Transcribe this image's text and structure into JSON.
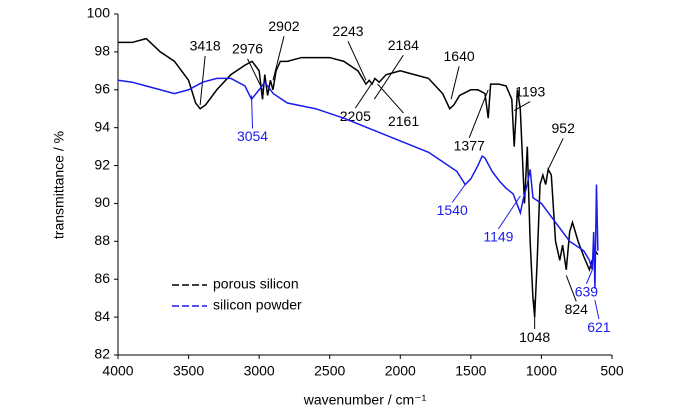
{
  "chart_data": {
    "type": "line",
    "x_label": "wavenumber / cm⁻¹",
    "y_label": "transmittance / %",
    "xlim": [
      4000,
      500
    ],
    "ylim": [
      82,
      100
    ],
    "xticks": [
      4000,
      3500,
      3000,
      2500,
      2000,
      1500,
      1000,
      500
    ],
    "yticks": [
      82,
      84,
      86,
      88,
      90,
      92,
      94,
      96,
      98,
      100
    ],
    "legend": "lower-left",
    "series": [
      {
        "name": "porous silicon",
        "color": "#000000",
        "x": [
          4000,
          3900,
          3800,
          3700,
          3600,
          3500,
          3450,
          3418,
          3380,
          3300,
          3200,
          3100,
          3050,
          3000,
          2976,
          2960,
          2940,
          2920,
          2902,
          2880,
          2850,
          2800,
          2700,
          2600,
          2500,
          2400,
          2300,
          2243,
          2220,
          2200,
          2180,
          2150,
          2100,
          2000,
          1900,
          1800,
          1750,
          1700,
          1650,
          1620,
          1580,
          1500,
          1450,
          1400,
          1377,
          1360,
          1300,
          1250,
          1210,
          1193,
          1170,
          1150,
          1120,
          1100,
          1080,
          1060,
          1048,
          1030,
          1010,
          990,
          970,
          952,
          930,
          900,
          870,
          850,
          824,
          800,
          780,
          760,
          740,
          700,
          660,
          640,
          620,
          600
        ],
        "values": [
          98.5,
          98.5,
          98.7,
          98.0,
          97.5,
          96.5,
          95.3,
          95.0,
          95.2,
          96.0,
          96.8,
          97.3,
          97.5,
          97.0,
          95.5,
          96.8,
          95.7,
          96.5,
          96.0,
          97.0,
          97.5,
          97.5,
          97.7,
          97.7,
          97.7,
          97.5,
          97.0,
          96.3,
          96.5,
          96.3,
          96.6,
          96.4,
          96.8,
          97.0,
          96.8,
          96.6,
          96.2,
          95.8,
          95.0,
          95.2,
          95.7,
          96.0,
          96.0,
          95.8,
          94.5,
          96.3,
          96.3,
          96.2,
          95.5,
          93.0,
          96.0,
          95.0,
          90.0,
          93.0,
          88.0,
          85.0,
          84.0,
          87.0,
          91.0,
          91.5,
          91.0,
          91.8,
          91.5,
          88.0,
          87.0,
          87.8,
          86.5,
          88.5,
          89.0,
          88.5,
          88.0,
          87.2,
          86.5,
          87.0,
          87.5,
          87.3
        ],
        "peaks": [
          {
            "x": 3418,
            "y": 95.2
          },
          {
            "x": 2976,
            "y": 96.0
          },
          {
            "x": 2902,
            "y": 96.5
          },
          {
            "x": 2243,
            "y": 96.5
          },
          {
            "x": 2184,
            "y": 95.5
          },
          {
            "x": 2205,
            "y": 96.3
          },
          {
            "x": 2161,
            "y": 96.3
          },
          {
            "x": 1640,
            "y": 95.5
          },
          {
            "x": 1377,
            "y": 96.0
          },
          {
            "x": 1193,
            "y": 94.9
          },
          {
            "x": 952,
            "y": 91.8
          },
          {
            "x": 1048,
            "y": 84.9
          },
          {
            "x": 824,
            "y": 86.2
          }
        ]
      },
      {
        "name": "silicon powder",
        "color": "#1a1aee",
        "x": [
          4000,
          3900,
          3800,
          3700,
          3600,
          3500,
          3400,
          3300,
          3200,
          3100,
          3054,
          3000,
          2960,
          2900,
          2800,
          2600,
          2400,
          2200,
          2000,
          1800,
          1700,
          1600,
          1540,
          1500,
          1450,
          1420,
          1400,
          1350,
          1300,
          1250,
          1200,
          1149,
          1130,
          1100,
          1080,
          1060,
          1000,
          950,
          900,
          850,
          800,
          700,
          660,
          639,
          630,
          621,
          610,
          600
        ],
        "values": [
          96.5,
          96.4,
          96.2,
          96.0,
          95.8,
          96.0,
          96.4,
          96.6,
          96.6,
          96.2,
          95.5,
          96.0,
          96.4,
          95.8,
          95.3,
          95.0,
          94.5,
          93.9,
          93.3,
          92.7,
          92.2,
          91.7,
          91.0,
          91.3,
          92.0,
          92.5,
          92.4,
          91.7,
          91.2,
          90.8,
          90.5,
          89.5,
          90.2,
          91.0,
          91.8,
          90.3,
          90.0,
          89.5,
          89.0,
          88.5,
          88.0,
          87.5,
          87.0,
          86.5,
          88.5,
          85.5,
          91.0,
          87.5
        ],
        "peaks": [
          {
            "x": 3054,
            "y": 95.7
          },
          {
            "x": 1540,
            "y": 91.0
          },
          {
            "x": 1149,
            "y": 90.4
          },
          {
            "x": 639,
            "y": 86.5
          },
          {
            "x": 621,
            "y": 84.9
          }
        ]
      }
    ]
  }
}
